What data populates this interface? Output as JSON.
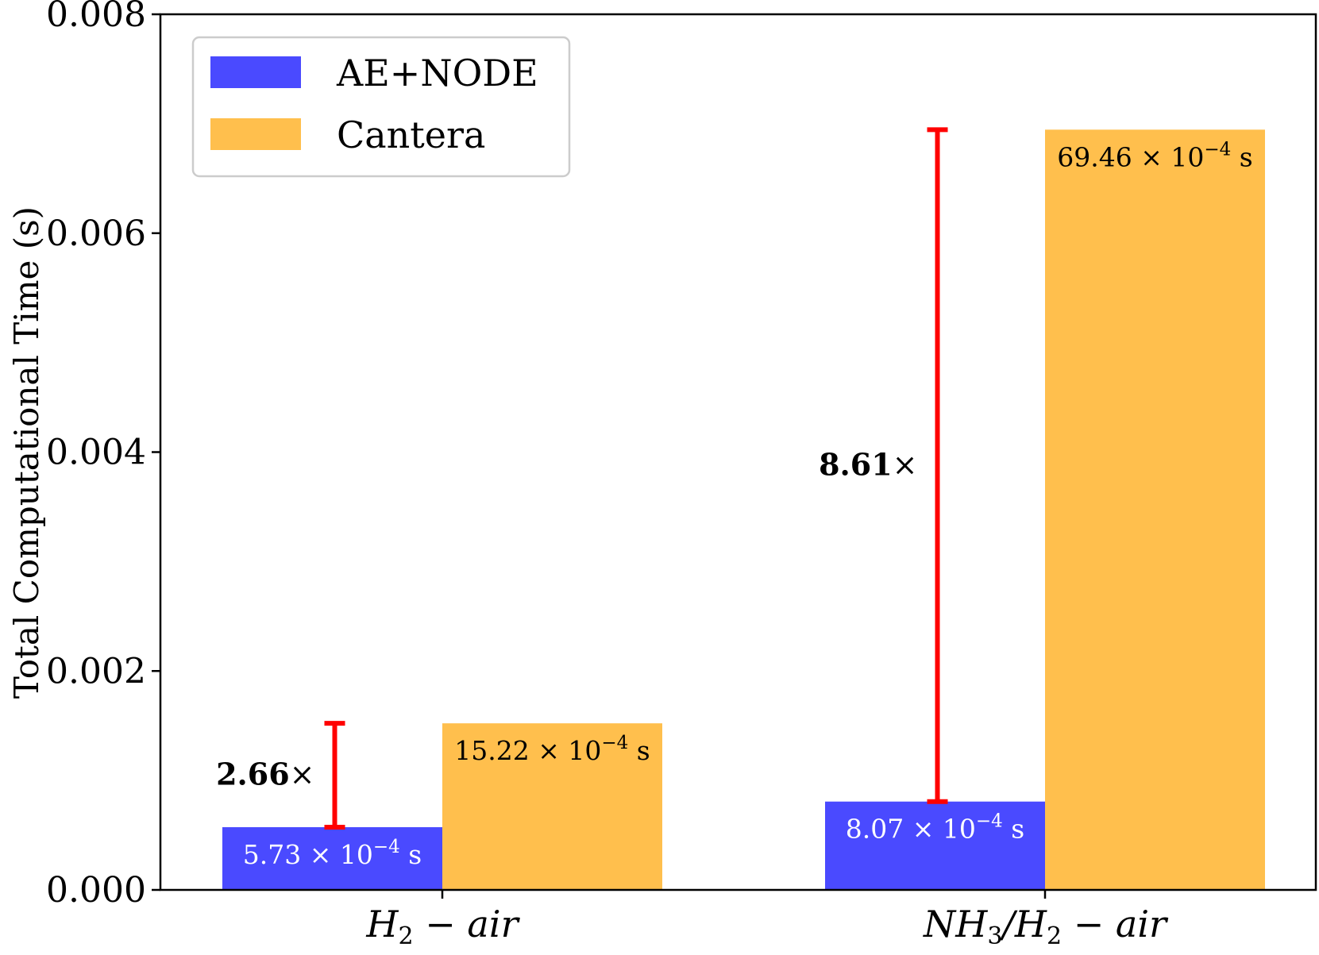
{
  "chart_data": {
    "type": "bar",
    "title": "",
    "xlabel": "",
    "ylabel": "Total Computational Time (s)",
    "ylim": [
      0,
      0.008
    ],
    "yticks": [
      {
        "value": 0.0,
        "label": "0.000"
      },
      {
        "value": 0.002,
        "label": "0.002"
      },
      {
        "value": 0.004,
        "label": "0.004"
      },
      {
        "value": 0.006,
        "label": "0.006"
      },
      {
        "value": 0.008,
        "label": "0.008"
      }
    ],
    "categories": [
      {
        "main": "H",
        "sub": "2",
        "tail": " − air"
      },
      {
        "main": "NH",
        "sub": "3",
        "mid": "/H",
        "sub2": "2",
        "tail": " − air"
      }
    ],
    "series": [
      {
        "name": "AE+NODE",
        "color": "#4a4aff",
        "label_color": "#ffffff",
        "values": [
          0.000573,
          0.000807
        ],
        "labels": [
          {
            "mantissa": "5.73 × 10",
            "exp": "−4",
            "unit": " s"
          },
          {
            "mantissa": "8.07 × 10",
            "exp": "−4",
            "unit": " s"
          }
        ]
      },
      {
        "name": "Cantera",
        "color": "#ffbf4d",
        "label_color": "#000000",
        "values": [
          0.001522,
          0.006946
        ],
        "labels": [
          {
            "mantissa": "15.22 × 10",
            "exp": "−4",
            "unit": " s"
          },
          {
            "mantissa": "69.46 × 10",
            "exp": "−4",
            "unit": " s"
          }
        ]
      }
    ],
    "speedups": [
      {
        "category": 0,
        "from": 0.000573,
        "to": 0.001522,
        "value": "2.66",
        "suffix": "×"
      },
      {
        "category": 1,
        "from": 0.000807,
        "to": 0.006946,
        "value": "8.61",
        "suffix": "×"
      }
    ],
    "speedup_color": "#ff0000",
    "legend": {
      "position": "upper-left"
    }
  }
}
